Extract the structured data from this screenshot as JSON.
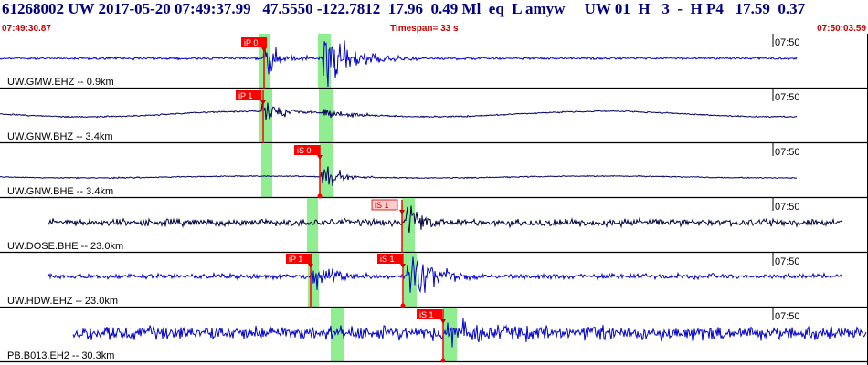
{
  "header": {
    "title": "61268002 UW 2017-05-20 07:49:37.99   47.5550 -122.7812  17.96  0.49 Ml  eq  L amyw     UW 01  H   3  -  H P4   17.59  0.37",
    "start_time": "07:49:30.87",
    "timespan": "Timespan=  33 s",
    "end_time": "07:50:03.59"
  },
  "colors": {
    "trace_blue": "#0000cc",
    "trace_dark": "#000060",
    "pick_red": "#ff0000",
    "pick_pale": "#ffcccc",
    "window_green": "#90ee90",
    "header_text": "#000080",
    "time_text": "#cc0000"
  },
  "panels": [
    {
      "station": "UW.GMW.EHZ -- 0.9km",
      "time_label": "07:50",
      "trace_color": "#0000cc",
      "picks": [
        {
          "label": "iP 0",
          "style": "solid"
        }
      ],
      "green_windows": 2
    },
    {
      "station": "UW.GNW.BHZ -- 3.4km",
      "time_label": "07:50",
      "trace_color": "#000060",
      "picks": [
        {
          "label": "iP 1",
          "style": "solid"
        }
      ],
      "green_windows": 2
    },
    {
      "station": "UW.GNW.BHE -- 3.4km",
      "time_label": "07:50",
      "trace_color": "#000060",
      "picks": [
        {
          "label": "iS 0",
          "style": "solid"
        }
      ],
      "green_windows": 2
    },
    {
      "station": "UW.DOSE.BHE -- 23.0km",
      "time_label": "07:50",
      "trace_color": "#000040",
      "picks": [
        {
          "label": "iS 1",
          "style": "pale"
        }
      ],
      "green_windows": 2
    },
    {
      "station": "UW.HDW.EHZ -- 23.0km",
      "time_label": "07:50",
      "trace_color": "#0000cc",
      "picks": [
        {
          "label": "iP 1",
          "style": "solid"
        },
        {
          "label": "iS 1",
          "style": "solid"
        }
      ],
      "green_windows": 2
    },
    {
      "station": "PB.B013.EH2 -- 30.3km",
      "time_label": "07:50",
      "trace_color": "#0000cc",
      "picks": [
        {
          "label": "iS 1",
          "style": "solid"
        }
      ],
      "green_windows": 2
    }
  ]
}
